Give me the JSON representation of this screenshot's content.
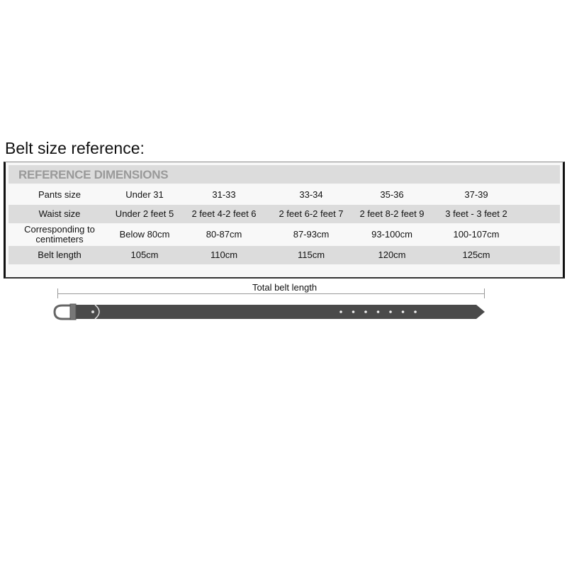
{
  "title": "Belt size reference:",
  "table": {
    "header": "REFERENCE DIMENSIONS",
    "rows": [
      {
        "label": "Pants size",
        "values": [
          "Under 31",
          "31-33",
          "33-34",
          "35-36",
          "37-39"
        ]
      },
      {
        "label": "Waist size",
        "values": [
          "Under 2 feet 5",
          "2 feet 4-2 feet 6",
          "2 feet 6-2 feet 7",
          "2 feet 8-2 feet 9",
          "3 feet - 3 feet 2"
        ]
      },
      {
        "label": "Corresponding to centimeters",
        "values": [
          "Below 80cm",
          "80-87cm",
          "87-93cm",
          "93-100cm",
          "100-107cm"
        ]
      },
      {
        "label": "Belt length",
        "values": [
          "105cm",
          "110cm",
          "115cm",
          "120cm",
          "125cm"
        ]
      }
    ]
  },
  "belt": {
    "label": "Total belt length",
    "color": "#4a4a4a"
  }
}
